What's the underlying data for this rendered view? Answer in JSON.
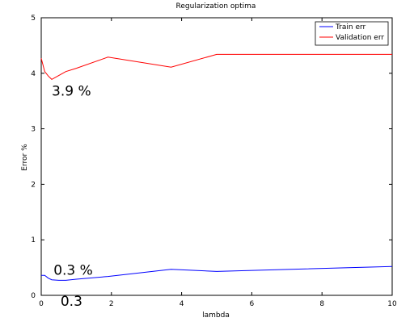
{
  "chart_data": {
    "type": "line",
    "title": "Regularization optima",
    "xlabel": "lambda",
    "ylabel": "Error %",
    "xlim": [
      0,
      10
    ],
    "ylim": [
      0,
      5
    ],
    "xticks": [
      0,
      2,
      4,
      6,
      8,
      10
    ],
    "yticks": [
      0,
      1,
      2,
      3,
      4,
      5
    ],
    "grid": false,
    "legend_position": "top-right",
    "series": [
      {
        "name": "Train err",
        "color": "#0000ff",
        "x": [
          0,
          0.1,
          0.2,
          0.3,
          0.5,
          0.7,
          1.0,
          1.9,
          3.7,
          5.0,
          10.0
        ],
        "y": [
          0.36,
          0.36,
          0.31,
          0.28,
          0.27,
          0.27,
          0.29,
          0.34,
          0.47,
          0.43,
          0.52
        ]
      },
      {
        "name": "Validation err",
        "color": "#ff0000",
        "x": [
          0,
          0.1,
          0.2,
          0.3,
          0.5,
          0.7,
          1.0,
          1.9,
          3.7,
          5.0,
          10.0
        ],
        "y": [
          4.27,
          4.03,
          3.95,
          3.89,
          3.96,
          4.03,
          4.09,
          4.29,
          4.11,
          4.34,
          4.34
        ]
      }
    ],
    "annotations": [
      {
        "text": "3.9 %",
        "x": 0.3,
        "y": 3.6
      },
      {
        "text": "0.3 %",
        "x": 0.35,
        "y": 0.37
      },
      {
        "text": "0.3",
        "x": 0.55,
        "y": -0.19
      }
    ]
  }
}
